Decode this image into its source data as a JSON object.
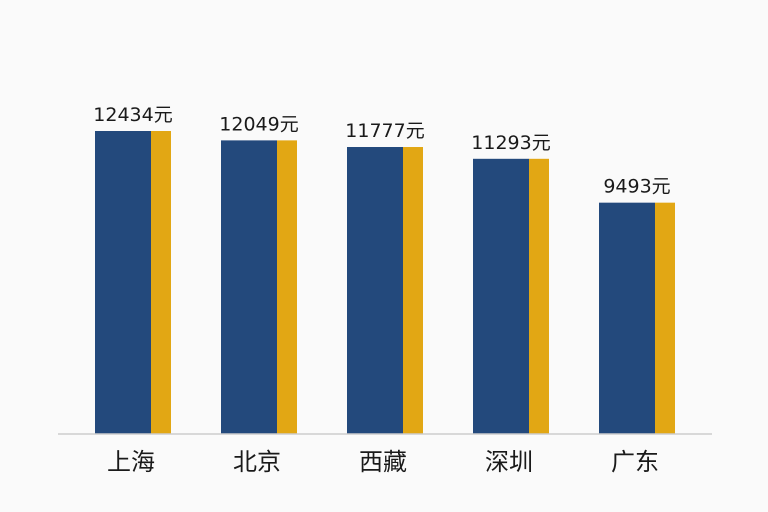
{
  "chart_data": {
    "type": "bar",
    "categories": [
      "上海",
      "北京",
      "西藏",
      "深圳",
      "广东"
    ],
    "values": [
      12434,
      12049,
      11777,
      11293,
      9493
    ],
    "value_labels": [
      "12434元",
      "12049元",
      "11777元",
      "11293元",
      "9493元"
    ],
    "ylim": [
      0,
      12434
    ],
    "grid": false,
    "legend": "none",
    "colors": {
      "bar_main": "#23497c",
      "bar_side": "#e2a714",
      "axis": "#cccccc"
    }
  }
}
